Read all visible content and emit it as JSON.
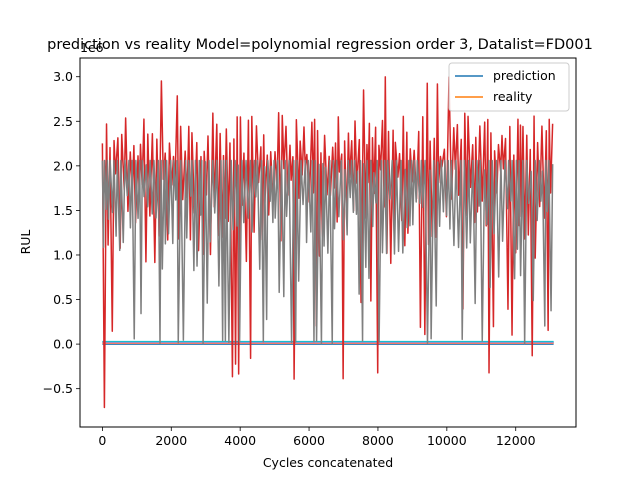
{
  "chart_data": {
    "type": "line",
    "title": "prediction vs reality Model=polynomial regression order 3, Datalist=FD001",
    "xlabel": "Cycles concatenated",
    "ylabel": "RUL",
    "y_scale_label": "1e6",
    "xlim": [
      -650,
      13750
    ],
    "ylim": [
      -930000,
      3210000
    ],
    "x_ticks": [
      0,
      2000,
      4000,
      6000,
      8000,
      10000,
      12000
    ],
    "x_tick_labels": [
      "0",
      "2000",
      "4000",
      "6000",
      "8000",
      "10000",
      "12000"
    ],
    "y_ticks": [
      -500000,
      0,
      500000,
      1000000,
      1500000,
      2000000,
      2500000,
      3000000
    ],
    "y_tick_labels": [
      "−0.5",
      "0.0",
      "0.5",
      "1.0",
      "1.5",
      "2.0",
      "2.5",
      "3.0"
    ],
    "grid": false,
    "legend": {
      "position": "top-right"
    },
    "series": [
      {
        "name": "prediction",
        "color": "#1f77b4",
        "shape": "flat",
        "values": [
          [
            0,
            0
          ],
          [
            13100,
            0
          ]
        ]
      },
      {
        "name": "reality",
        "color": "#ff7f0e",
        "shape": "flat",
        "values": [
          [
            0,
            10000
          ],
          [
            13100,
            10000
          ]
        ]
      },
      {
        "color": "#2ca02c",
        "shape": "flat",
        "values": [
          [
            0,
            18000
          ],
          [
            13100,
            18000
          ]
        ]
      },
      {
        "color": "#9467bd",
        "shape": "flat",
        "values": [
          [
            0,
            24000
          ],
          [
            13100,
            24000
          ]
        ]
      },
      {
        "color": "#e377c2",
        "shape": "flat",
        "values": [
          [
            0,
            15000
          ],
          [
            13100,
            15000
          ]
        ]
      },
      {
        "color": "#17becf",
        "shape": "flat",
        "values": [
          [
            0,
            28000
          ],
          [
            13100,
            28000
          ]
        ]
      },
      {
        "color": "#d62728",
        "shape": "oscillating",
        "x_start": 0,
        "x_end": 13100,
        "max": 3000000,
        "min": -800000,
        "typical_high": 2500000,
        "typical_low": 900000
      },
      {
        "color": "#7f7f7f",
        "shape": "oscillating",
        "x_start": 0,
        "x_end": 13100,
        "max": 2060000,
        "min": 0,
        "typical_high": 2060000,
        "typical_low": 1000000
      }
    ]
  }
}
